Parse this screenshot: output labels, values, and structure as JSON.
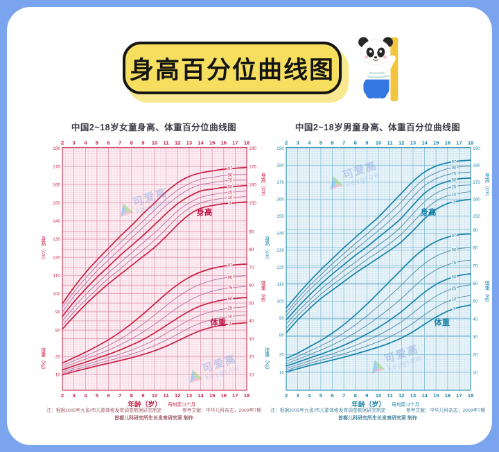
{
  "page": {
    "background_color": "#7aa5ee",
    "panel_color": "#ffffff"
  },
  "banner": {
    "title": "身高百分位曲线图",
    "bg_color": "#f6de5f",
    "border_color": "#141414",
    "mascot": "panda-with-ruler-icon"
  },
  "watermark": {
    "name": "可爱高",
    "latin": "keygrow"
  },
  "chart_data": [
    {
      "id": "girls",
      "type": "line",
      "title": "中国2~18岁女童身高、体重百分位曲线图",
      "colors": {
        "accent": "#c9234a",
        "curve_bold": "#cb2148",
        "curve_thin": "#bb6f9f",
        "plot_bg": "#fdf0f4",
        "grid_minor": "#f0c3d2",
        "grid_major": "#d9779b",
        "section_label": "#c01745"
      },
      "x_axis": {
        "min": 2,
        "max": 18,
        "title": "年龄（岁）",
        "subtitle": "每刻度=3个月"
      },
      "height_axis": {
        "title": "身高（cm）",
        "min": 80,
        "max": 180,
        "top_frac": 0.004,
        "bottom_frac": 0.752,
        "left_labels": [
          180,
          170,
          160,
          150,
          140,
          130,
          120,
          110,
          100,
          90,
          80
        ],
        "right_labels": [
          180,
          170,
          160,
          150
        ]
      },
      "weight_axis": {
        "title": "体重（kg）",
        "min": 10,
        "max": 90,
        "top_frac": 0.347,
        "bottom_frac": 0.935,
        "left_labels": [
          20,
          10
        ],
        "right_labels": [
          90,
          80,
          70,
          60,
          50,
          40,
          30,
          20,
          10
        ]
      },
      "section_labels": {
        "height": "身高",
        "weight": "体重"
      },
      "percentiles": [
        97,
        90,
        75,
        50,
        25,
        10,
        3
      ],
      "ages": [
        2,
        3,
        4,
        5,
        6,
        7,
        8,
        9,
        10,
        11,
        12,
        13,
        14,
        15,
        16,
        17,
        18
      ],
      "height_series": [
        {
          "p": 97,
          "values": [
            94.5,
            103.5,
            111.5,
            118.5,
            125,
            131.5,
            137.5,
            144,
            150,
            156,
            161,
            164.5,
            166.5,
            167.5,
            168.5,
            169,
            169.5
          ]
        },
        {
          "p": 90,
          "values": [
            92.5,
            101,
            108.5,
            115.5,
            122,
            128,
            134,
            140,
            146,
            152,
            157,
            160.5,
            163,
            164,
            165,
            165.5,
            165.5
          ]
        },
        {
          "p": 75,
          "values": [
            90,
            98.5,
            105.5,
            112.5,
            118.5,
            124.5,
            130.5,
            136.5,
            142.5,
            148.5,
            153.5,
            157.5,
            160,
            161,
            162,
            162.5,
            162.5
          ]
        },
        {
          "p": 50,
          "values": [
            87.5,
            95.5,
            102.5,
            109,
            115,
            121,
            126.5,
            132,
            138,
            144,
            149.5,
            153.5,
            156.5,
            157.5,
            158.5,
            159,
            159.5
          ]
        },
        {
          "p": 25,
          "values": [
            85,
            92.5,
            99.5,
            105.5,
            111.5,
            117,
            122.5,
            128,
            133.5,
            139.5,
            145.5,
            150,
            153,
            154.5,
            155.5,
            156,
            156.5
          ]
        },
        {
          "p": 10,
          "values": [
            82.5,
            90,
            96.5,
            102.5,
            108.5,
            113.5,
            119,
            124,
            129.5,
            135.5,
            142,
            147,
            150,
            151.5,
            152.5,
            153,
            153.5
          ]
        },
        {
          "p": 3,
          "values": [
            80.5,
            87.5,
            94,
            100,
            105.5,
            110.5,
            115.5,
            120.5,
            125.5,
            131.5,
            138,
            143.5,
            147,
            148.5,
            149.5,
            150,
            150.5
          ]
        }
      ],
      "weight_series": [
        {
          "p": 97,
          "values": [
            16.4,
            19.4,
            22.5,
            25.8,
            29.5,
            33.7,
            38.5,
            43.8,
            49.5,
            55.2,
            60.3,
            64.4,
            67.4,
            69.4,
            70.7,
            71.4,
            71.8
          ]
        },
        {
          "p": 90,
          "values": [
            15,
            17.7,
            20.4,
            23.2,
            26.3,
            29.8,
            33.8,
            38.3,
            43.3,
            48.5,
            53.4,
            57.5,
            60.6,
            62.7,
            64,
            64.8,
            65.3
          ]
        },
        {
          "p": 75,
          "values": [
            13.8,
            16.2,
            18.6,
            21.1,
            23.7,
            26.6,
            30,
            33.8,
            38.1,
            42.8,
            47.4,
            51.4,
            54.5,
            56.6,
            58,
            58.8,
            59.3
          ]
        },
        {
          "p": 50,
          "values": [
            12.6,
            14.8,
            16.9,
            19.1,
            21.3,
            23.7,
            26.5,
            29.6,
            33.3,
            37.4,
            41.6,
            45.4,
            48.4,
            50.4,
            51.8,
            52.6,
            53.1
          ]
        },
        {
          "p": 25,
          "values": [
            11.5,
            13.6,
            15.5,
            17.4,
            19.4,
            21.4,
            23.7,
            26.3,
            29.4,
            33,
            36.8,
            40.4,
            43.3,
            45.3,
            46.6,
            47.4,
            47.9
          ]
        },
        {
          "p": 10,
          "values": [
            10.6,
            12.6,
            14.3,
            16,
            17.8,
            19.5,
            21.4,
            23.6,
            26.2,
            29.2,
            32.6,
            36,
            38.8,
            40.7,
            42,
            42.8,
            43.3
          ]
        },
        {
          "p": 3,
          "values": [
            9.8,
            11.6,
            13.2,
            14.8,
            16.3,
            17.8,
            19.4,
            21.2,
            23.3,
            25.8,
            28.8,
            31.9,
            34.6,
            36.5,
            37.8,
            38.5,
            39
          ]
        }
      ],
      "footnote_left": "注：根据2005年九省/市儿童体格发育调查数据研究制定",
      "footnote_right": "参考文献：中华儿科杂志，2009年7期",
      "footnote_maker": "首都儿科研究所生长发育研究室 制作"
    },
    {
      "id": "boys",
      "type": "line",
      "title": "中国2~18岁男童身高、体重百分位曲线图",
      "colors": {
        "accent": "#1e86a8",
        "curve_bold": "#1684ab",
        "curve_thin": "#4b88a6",
        "plot_bg": "#eaf4f9",
        "grid_minor": "#bddced",
        "grid_major": "#66adc9",
        "section_label": "#0f7ca3"
      },
      "x_axis": {
        "min": 2,
        "max": 18,
        "title": "年龄（岁）",
        "subtitle": "每刻度=3个月"
      },
      "height_axis": {
        "title": "身高（cm）",
        "min": 80,
        "max": 190,
        "top_frac": 0.004,
        "bottom_frac": 0.773,
        "left_labels": [
          190,
          180,
          170,
          160,
          150,
          140,
          130,
          120,
          110,
          100,
          90,
          80
        ],
        "right_labels": [
          190,
          180,
          170,
          160,
          150
        ]
      },
      "weight_axis": {
        "title": "体重（kg）",
        "min": 10,
        "max": 90,
        "top_frac": 0.34,
        "bottom_frac": 0.926,
        "left_labels": [
          20,
          10
        ],
        "right_labels": [
          90,
          80,
          70,
          60,
          50,
          40,
          30,
          20,
          10
        ]
      },
      "section_labels": {
        "height": "身高",
        "weight": "体重"
      },
      "percentiles": [
        97,
        90,
        75,
        50,
        25,
        10,
        3
      ],
      "ages": [
        2,
        3,
        4,
        5,
        6,
        7,
        8,
        9,
        10,
        11,
        12,
        13,
        14,
        15,
        16,
        17,
        18
      ],
      "height_series": [
        {
          "p": 97,
          "values": [
            96,
            104,
            111.5,
            118.5,
            125,
            131.5,
            137.5,
            143.5,
            149.5,
            156.5,
            163.5,
            170.5,
            176,
            179.5,
            181.5,
            182.5,
            183
          ]
        },
        {
          "p": 90,
          "values": [
            93.5,
            101.5,
            109,
            115.5,
            122,
            128,
            134,
            139.5,
            145.5,
            152,
            158.5,
            166,
            172,
            175.5,
            178,
            179,
            179.5
          ]
        },
        {
          "p": 75,
          "values": [
            91.5,
            99.5,
            106.5,
            113,
            119,
            125,
            130.5,
            136,
            141.5,
            147.5,
            154,
            161.5,
            168,
            172,
            174.5,
            175.5,
            176
          ]
        },
        {
          "p": 50,
          "values": [
            89,
            96.5,
            103.5,
            110,
            116,
            121.5,
            127,
            132,
            137.5,
            143,
            149,
            156.5,
            163.5,
            168,
            170.5,
            172,
            172.5
          ]
        },
        {
          "p": 25,
          "values": [
            86.5,
            94,
            100.5,
            107,
            112.5,
            118,
            123,
            128,
            133,
            138,
            144,
            151.5,
            158.5,
            163.5,
            166.5,
            168,
            168.5
          ]
        },
        {
          "p": 10,
          "values": [
            84,
            91.5,
            98,
            104,
            109.5,
            114.5,
            119.5,
            124.5,
            129,
            134,
            139.5,
            146.5,
            153.5,
            159,
            162,
            163.5,
            164.5
          ]
        },
        {
          "p": 3,
          "values": [
            81.5,
            89,
            95.5,
            101.5,
            106.5,
            111.5,
            116.5,
            121,
            125.5,
            130,
            135,
            141.5,
            148.5,
            154,
            157.5,
            159,
            160
          ]
        }
      ],
      "weight_series": [
        {
          "p": 97,
          "values": [
            17.8,
            20.8,
            24.3,
            27.9,
            32,
            36.8,
            42.3,
            48.3,
            54.7,
            61.2,
            67.7,
            74.2,
            79.6,
            83.5,
            85.9,
            87.3,
            87.8
          ]
        },
        {
          "p": 90,
          "values": [
            16.2,
            18.9,
            21.9,
            24.9,
            28.3,
            32.2,
            36.7,
            41.7,
            47.2,
            53,
            59.1,
            65.5,
            71.1,
            75.2,
            77.9,
            79.5,
            80.1
          ]
        },
        {
          "p": 75,
          "values": [
            14.8,
            17.3,
            19.9,
            22.5,
            25.4,
            28.6,
            32.3,
            36.4,
            41,
            46,
            51.5,
            57.6,
            63.2,
            67.5,
            70.4,
            72.2,
            73
          ]
        },
        {
          "p": 50,
          "values": [
            13.6,
            15.7,
            18,
            20.2,
            22.6,
            25.2,
            28.2,
            31.5,
            35.2,
            39.4,
            44.1,
            49.6,
            55,
            59.4,
            62.4,
            64.4,
            65.4
          ]
        },
        {
          "p": 25,
          "values": [
            12.2,
            14.3,
            16.4,
            18.4,
            20.4,
            22.7,
            25.1,
            27.9,
            30.9,
            34.4,
            38.4,
            43.3,
            48.4,
            52.8,
            56,
            58,
            59.2
          ]
        },
        {
          "p": 10,
          "values": [
            11.2,
            13.1,
            15,
            16.8,
            18.5,
            20.4,
            22.5,
            24.8,
            27.2,
            30,
            33.4,
            37.6,
            42.3,
            46.6,
            49.8,
            52,
            53.2
          ]
        },
        {
          "p": 3,
          "values": [
            10.2,
            12,
            13.8,
            15.3,
            16.9,
            18.5,
            20.3,
            22.2,
            24.2,
            26.5,
            29.3,
            32.8,
            37,
            41,
            44.3,
            46.5,
            47.8
          ]
        }
      ],
      "footnote_left": "注：根据2005年九省/市儿童体格发育调查数据研究制定",
      "footnote_right": "参考文献：中华儿科杂志，2009年7期",
      "footnote_maker": "首都儿科研究所生长发育研究室 制作"
    }
  ]
}
